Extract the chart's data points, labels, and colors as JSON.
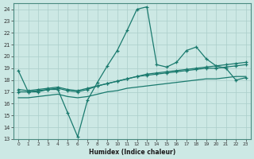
{
  "xlabel": "Humidex (Indice chaleur)",
  "background_color": "#cce8e4",
  "grid_color": "#aaceca",
  "line_color": "#1a7a6e",
  "xlim": [
    -0.5,
    23.5
  ],
  "ylim": [
    13,
    24.5
  ],
  "yticks": [
    13,
    14,
    15,
    16,
    17,
    18,
    19,
    20,
    21,
    22,
    23,
    24
  ],
  "xticks": [
    0,
    1,
    2,
    3,
    4,
    5,
    6,
    7,
    8,
    9,
    10,
    11,
    12,
    13,
    14,
    15,
    16,
    17,
    18,
    19,
    20,
    21,
    22,
    23
  ],
  "line1_x": [
    0,
    1,
    2,
    3,
    4,
    5,
    6,
    7,
    8,
    9,
    10,
    11,
    12,
    13,
    14,
    15,
    16,
    17,
    18,
    19,
    20,
    21,
    22,
    23
  ],
  "line1_y": [
    18.8,
    17.0,
    17.0,
    17.2,
    17.2,
    15.2,
    13.2,
    16.3,
    17.8,
    19.2,
    20.5,
    22.2,
    24.0,
    24.2,
    19.3,
    19.1,
    19.5,
    20.5,
    20.8,
    19.8,
    19.2,
    19.0,
    18.0,
    18.2
  ],
  "line2_x": [
    0,
    1,
    2,
    3,
    4,
    5,
    6,
    7,
    8,
    9,
    10,
    11,
    12,
    13,
    14,
    15,
    16,
    17,
    18,
    19,
    20,
    21,
    22,
    23
  ],
  "line2_y": [
    17.2,
    17.1,
    17.2,
    17.3,
    17.4,
    17.2,
    17.1,
    17.3,
    17.5,
    17.7,
    17.9,
    18.1,
    18.3,
    18.5,
    18.6,
    18.7,
    18.8,
    18.9,
    19.0,
    19.1,
    19.2,
    19.3,
    19.4,
    19.5
  ],
  "line3_x": [
    0,
    1,
    2,
    3,
    4,
    5,
    6,
    7,
    8,
    9,
    10,
    11,
    12,
    13,
    14,
    15,
    16,
    17,
    18,
    19,
    20,
    21,
    22,
    23
  ],
  "line3_y": [
    17.0,
    17.0,
    17.1,
    17.2,
    17.3,
    17.1,
    17.0,
    17.2,
    17.5,
    17.7,
    17.9,
    18.1,
    18.3,
    18.4,
    18.5,
    18.6,
    18.7,
    18.8,
    18.9,
    19.0,
    19.0,
    19.1,
    19.2,
    19.3
  ],
  "line4_x": [
    0,
    1,
    2,
    3,
    4,
    5,
    6,
    7,
    8,
    9,
    10,
    11,
    12,
    13,
    14,
    15,
    16,
    17,
    18,
    19,
    20,
    21,
    22,
    23
  ],
  "line4_y": [
    16.5,
    16.5,
    16.6,
    16.7,
    16.8,
    16.6,
    16.5,
    16.6,
    16.8,
    17.0,
    17.1,
    17.3,
    17.4,
    17.5,
    17.6,
    17.7,
    17.8,
    17.9,
    18.0,
    18.1,
    18.1,
    18.2,
    18.3,
    18.3
  ]
}
